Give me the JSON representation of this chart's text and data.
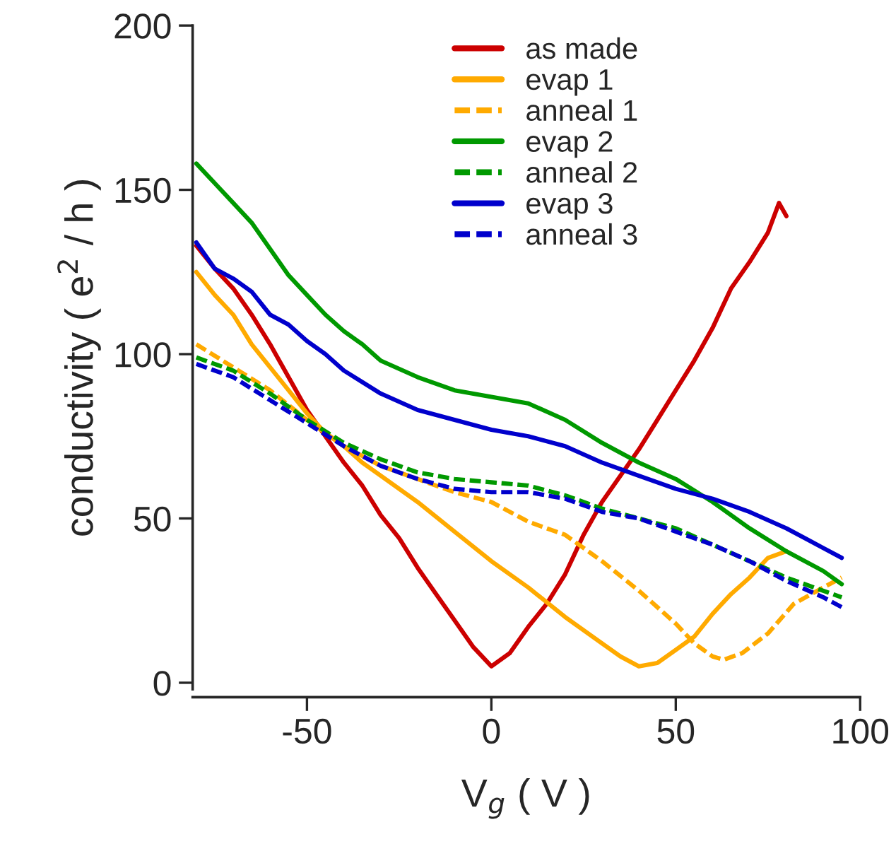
{
  "chart_data": {
    "type": "line",
    "xlabel": "V$_{g}$ ( V )",
    "ylabel": "conductivity ( e$^{2}$ / h )",
    "xlim": [
      -81,
      100
    ],
    "ylim": [
      -2,
      200
    ],
    "xticks": [
      -50,
      0,
      50,
      100
    ],
    "yticks": [
      0,
      50,
      100,
      150,
      200
    ],
    "grid": false,
    "legend": "top",
    "marker": "none",
    "series": [
      {
        "name": "as made",
        "color": "#cc0000",
        "line_style": "solid",
        "x": [
          -80,
          -75,
          -70,
          -65,
          -60,
          -55,
          -50,
          -45,
          -40,
          -35,
          -30,
          -25,
          -20,
          -15,
          -10,
          -5,
          0,
          5,
          10,
          15,
          20,
          25,
          30,
          35,
          40,
          45,
          50,
          55,
          60,
          65,
          70,
          75,
          78,
          80
        ],
        "values": [
          133,
          126,
          120,
          112,
          103,
          93,
          83,
          75,
          67,
          60,
          51,
          44,
          35,
          27,
          19,
          11,
          5,
          9,
          17,
          24,
          33,
          45,
          55,
          63,
          71,
          80,
          89,
          98,
          108,
          120,
          128,
          137,
          146,
          142
        ]
      },
      {
        "name": "evap 1",
        "color": "#ffaa00",
        "line_style": "solid",
        "x": [
          -80,
          -75,
          -70,
          -65,
          -60,
          -55,
          -50,
          -45,
          -40,
          -35,
          -30,
          -20,
          -10,
          0,
          10,
          20,
          30,
          35,
          40,
          45,
          50,
          55,
          60,
          65,
          70,
          75,
          80
        ],
        "values": [
          125,
          118,
          112,
          103,
          96,
          89,
          82,
          76,
          72,
          67,
          63,
          55,
          46,
          37,
          29,
          20,
          12,
          8,
          5,
          6,
          10,
          14,
          21,
          27,
          32,
          38,
          40
        ]
      },
      {
        "name": "anneal 1",
        "color": "#ffaa00",
        "line_style": "dashed",
        "x": [
          -80,
          -70,
          -60,
          -50,
          -40,
          -30,
          -20,
          -10,
          0,
          10,
          20,
          30,
          40,
          50,
          55,
          60,
          63,
          68,
          75,
          82,
          90,
          95
        ],
        "values": [
          103,
          96,
          89,
          80,
          72,
          66,
          62,
          58,
          55,
          49,
          45,
          37,
          28,
          18,
          12,
          8,
          7,
          9,
          15,
          24,
          29,
          32
        ]
      },
      {
        "name": "evap 2",
        "color": "#009900",
        "line_style": "solid",
        "x": [
          -80,
          -75,
          -70,
          -65,
          -60,
          -55,
          -50,
          -45,
          -40,
          -35,
          -30,
          -20,
          -10,
          0,
          10,
          20,
          30,
          40,
          50,
          60,
          70,
          80,
          90,
          95
        ],
        "values": [
          158,
          152,
          146,
          140,
          132,
          124,
          118,
          112,
          107,
          103,
          98,
          93,
          89,
          87,
          85,
          80,
          73,
          67,
          62,
          55,
          47,
          40,
          34,
          30
        ]
      },
      {
        "name": "anneal 2",
        "color": "#009900",
        "line_style": "dashed",
        "x": [
          -80,
          -70,
          -60,
          -50,
          -40,
          -30,
          -20,
          -10,
          0,
          10,
          20,
          30,
          40,
          50,
          60,
          70,
          80,
          90,
          95
        ],
        "values": [
          99,
          95,
          88,
          80,
          73,
          68,
          64,
          62,
          61,
          60,
          57,
          53,
          50,
          47,
          42,
          37,
          32,
          28,
          26
        ]
      },
      {
        "name": "evap 3",
        "color": "#0000cc",
        "line_style": "solid",
        "x": [
          -80,
          -75,
          -70,
          -65,
          -60,
          -55,
          -50,
          -45,
          -40,
          -30,
          -20,
          -10,
          0,
          10,
          20,
          30,
          40,
          50,
          60,
          70,
          80,
          90,
          95
        ],
        "values": [
          134,
          126,
          123,
          119,
          112,
          109,
          104,
          100,
          95,
          88,
          83,
          80,
          77,
          75,
          72,
          67,
          63,
          59,
          56,
          52,
          47,
          41,
          38
        ]
      },
      {
        "name": "anneal 3",
        "color": "#0000cc",
        "line_style": "dashed",
        "x": [
          -80,
          -70,
          -60,
          -50,
          -40,
          -30,
          -20,
          -10,
          0,
          10,
          20,
          30,
          40,
          50,
          60,
          70,
          80,
          90,
          95
        ],
        "values": [
          97,
          93,
          86,
          79,
          72,
          66,
          62,
          59,
          58,
          58,
          56,
          52,
          50,
          46,
          42,
          37,
          31,
          26,
          23
        ]
      }
    ]
  }
}
